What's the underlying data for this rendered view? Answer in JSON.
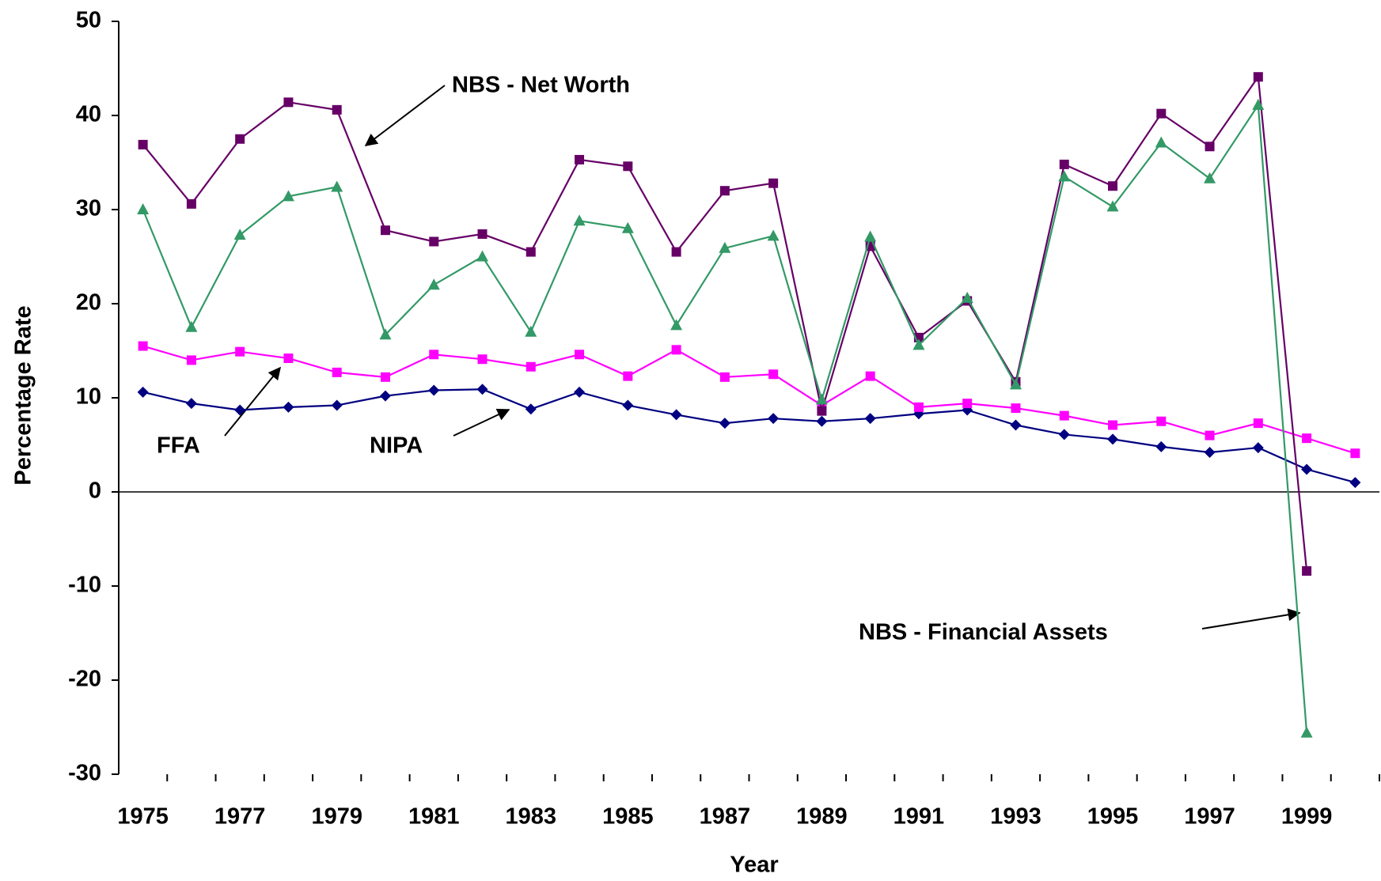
{
  "chart_data": {
    "type": "line",
    "x_label": "Year",
    "y_label": "Percentage Rate",
    "categories": [
      "1975",
      null,
      "1977",
      null,
      "1979",
      null,
      "1981",
      null,
      "1983",
      null,
      "1985",
      null,
      "1987",
      null,
      "1989",
      null,
      "1991",
      null,
      "1993",
      null,
      "1995",
      null,
      "1997",
      null,
      "1999",
      null
    ],
    "series": [
      {
        "name": "NIPA",
        "color": "#000080",
        "marker": "diamond",
        "values": [
          10.6,
          9.4,
          8.7,
          9.0,
          9.2,
          10.2,
          10.8,
          10.9,
          8.8,
          10.6,
          9.2,
          8.2,
          7.3,
          7.8,
          7.5,
          7.8,
          8.3,
          8.7,
          7.1,
          6.1,
          5.6,
          4.8,
          4.2,
          4.7,
          2.4,
          1.0
        ]
      },
      {
        "name": "FFA",
        "color": "#ff00ff",
        "marker": "square",
        "values": [
          15.5,
          14.0,
          14.9,
          14.2,
          12.7,
          12.2,
          14.6,
          14.1,
          13.3,
          14.6,
          12.3,
          15.1,
          12.2,
          12.5,
          9.2,
          12.3,
          9.0,
          9.4,
          8.9,
          8.1,
          7.1,
          7.5,
          6.0,
          7.3,
          5.7,
          4.1
        ]
      },
      {
        "name": "NBS - Net Worth",
        "color": "#660066",
        "marker": "square",
        "values": [
          36.9,
          30.6,
          37.5,
          41.4,
          40.6,
          27.8,
          26.6,
          27.4,
          25.5,
          35.3,
          34.6,
          25.5,
          32.0,
          32.8,
          8.6,
          26.1,
          16.4,
          20.3,
          11.7,
          34.8,
          32.5,
          40.2,
          36.7,
          44.1,
          -8.4,
          null
        ]
      },
      {
        "name": "NBS - Financial Assets",
        "color": "#339966",
        "marker": "triangle",
        "values": [
          30.0,
          17.5,
          27.3,
          31.4,
          32.4,
          16.7,
          22.0,
          25.0,
          17.0,
          28.8,
          28.0,
          17.7,
          25.9,
          27.2,
          9.8,
          27.1,
          15.6,
          20.6,
          11.4,
          33.5,
          30.3,
          37.1,
          33.3,
          41.1,
          -25.6,
          null
        ]
      }
    ],
    "ylim": [
      -30,
      50
    ],
    "yticks": [
      -30,
      -20,
      -10,
      0,
      10,
      20,
      30,
      40,
      50
    ],
    "grid": false
  }
}
